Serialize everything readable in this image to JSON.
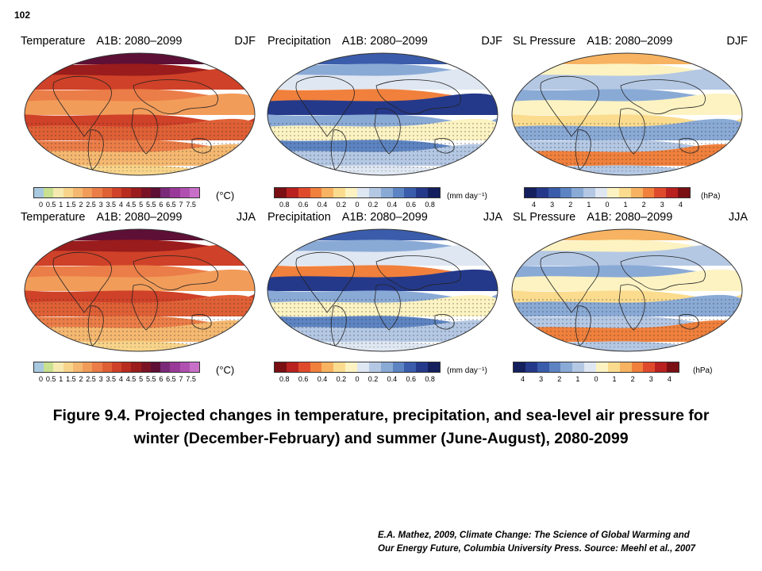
{
  "page_number": "102",
  "panels": [
    {
      "variable": "Temperature",
      "scenario": "A1B: 2080–2099",
      "season": "DJF",
      "kind": "temp"
    },
    {
      "variable": "Precipitation",
      "scenario": "A1B: 2080–2099",
      "season": "DJF",
      "kind": "precip"
    },
    {
      "variable": "SL Pressure",
      "scenario": "A1B: 2080–2099",
      "season": "DJF",
      "kind": "press"
    },
    {
      "variable": "Temperature",
      "scenario": "A1B: 2080–2099",
      "season": "JJA",
      "kind": "temp"
    },
    {
      "variable": "Precipitation",
      "scenario": "A1B: 2080–2099",
      "season": "JJA",
      "kind": "precip"
    },
    {
      "variable": "SL Pressure",
      "scenario": "A1B: 2080–2099",
      "season": "JJA",
      "kind": "press"
    }
  ],
  "colorbars": {
    "temp": {
      "unit": "(°C)",
      "ticks": [
        "0",
        "0.5",
        "1",
        "1.5",
        "2",
        "2.5",
        "3",
        "3.5",
        "4",
        "4.5",
        "5",
        "5.5",
        "6",
        "6.5",
        "7",
        "7.5"
      ],
      "colors": [
        "#a8c9e0",
        "#c8e090",
        "#f6eab0",
        "#f8d48a",
        "#f5b870",
        "#f29c5a",
        "#eb7d48",
        "#e06036",
        "#cf4128",
        "#b82b1f",
        "#9a1c1c",
        "#7a1225",
        "#5e0f35",
        "#7a2a78",
        "#9a3a98",
        "#b050b0",
        "#c870c8"
      ]
    },
    "precip": {
      "unit": "(mm day⁻¹)",
      "ticks": [
        "0.8",
        "0.6",
        "0.4",
        "0.2",
        "0",
        "0.2",
        "0.4",
        "0.6",
        "0.8"
      ],
      "colors": [
        "#7a0f14",
        "#b8211f",
        "#e04a2c",
        "#f0803c",
        "#f7b361",
        "#fbdc8e",
        "#fdf3c2",
        "#dfe7f2",
        "#b4c8e4",
        "#8aaad6",
        "#5d84c2",
        "#3a5cab",
        "#25398a",
        "#141f5e"
      ]
    },
    "press": {
      "unit": "(hPa)",
      "ticks": [
        "4",
        "3",
        "2",
        "1",
        "0",
        "1",
        "2",
        "3",
        "4"
      ],
      "colors": [
        "#141f5e",
        "#25398a",
        "#3a5cab",
        "#5d84c2",
        "#8aaad6",
        "#b4c8e4",
        "#dfe7f2",
        "#fdf3c2",
        "#fbdc8e",
        "#f7b361",
        "#f0803c",
        "#e04a2c",
        "#b8211f",
        "#7a0f14"
      ]
    }
  },
  "caption": "Figure 9.4.  Projected changes in temperature, precipitation, and sea-level air pressure for winter (December-February) and summer (June-August), 2080-2099",
  "credit": {
    "line1": "E.A. Mathez, 2009, Climate Change: The Science of Global Warming and",
    "line2": "Our Energy Future, Columbia University Press.  Source: Meehl et al., 2007"
  }
}
